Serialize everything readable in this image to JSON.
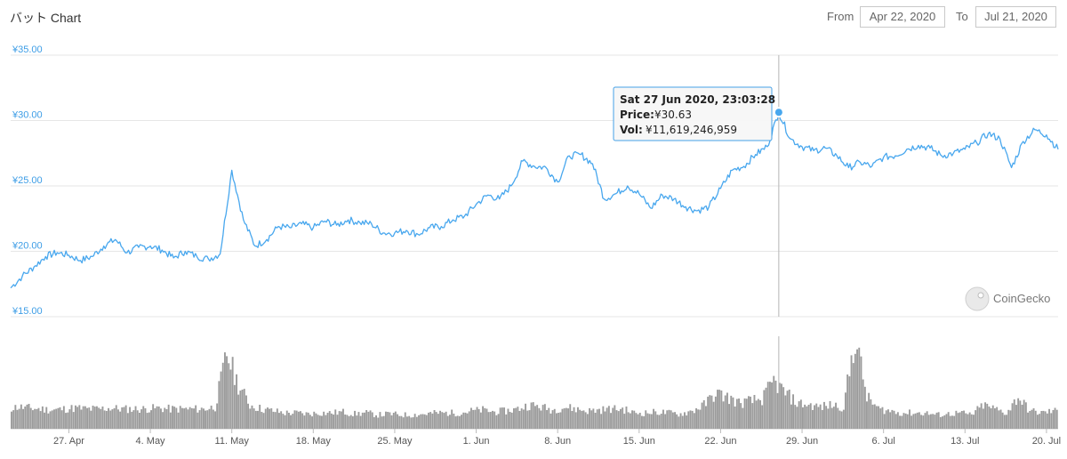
{
  "header": {
    "title": "バット Chart",
    "from_label": "From",
    "from_value": "Apr 22, 2020",
    "to_label": "To",
    "to_value": "Jul 21, 2020"
  },
  "watermark": "CoinGecko",
  "tooltip": {
    "date": "Sat 27 Jun 2020, 23:03:28",
    "price_label": "Price:",
    "price_value": "¥30.63",
    "vol_label": "Vol:",
    "vol_value": "¥11,619,246,959"
  },
  "colors": {
    "line": "#48a7ee",
    "volume": "#9b9b9b",
    "grid": "#e6e6e6",
    "axis_text": "#3d9de6"
  },
  "chart_data": {
    "type": "line",
    "title": "バット Chart",
    "x_range": [
      "2020-04-22",
      "2020-07-21"
    ],
    "ylim": [
      15,
      35
    ],
    "y_ticks": [
      "¥15.00",
      "¥20.00",
      "¥25.00",
      "¥30.00",
      "¥35.00"
    ],
    "y_tick_values": [
      15,
      20,
      25,
      30,
      35
    ],
    "x_ticks": [
      "27. Apr",
      "4. May",
      "11. May",
      "18. May",
      "25. May",
      "1. Jun",
      "8. Jun",
      "15. Jun",
      "22. Jun",
      "29. Jun",
      "6. Jul",
      "13. Jul",
      "20. Jul"
    ],
    "x_tick_dates": [
      "2020-04-27",
      "2020-05-04",
      "2020-05-11",
      "2020-05-18",
      "2020-05-25",
      "2020-06-01",
      "2020-06-08",
      "2020-06-15",
      "2020-06-22",
      "2020-06-29",
      "2020-07-06",
      "2020-07-13",
      "2020-07-20"
    ],
    "grid": true,
    "series": [
      {
        "name": "Price",
        "points": [
          [
            "2020-04-22",
            17.2
          ],
          [
            "2020-04-23",
            18.1
          ],
          [
            "2020-04-24",
            18.8
          ],
          [
            "2020-04-25",
            19.6
          ],
          [
            "2020-04-26",
            19.9
          ],
          [
            "2020-04-27",
            19.7
          ],
          [
            "2020-04-28",
            19.3
          ],
          [
            "2020-04-29",
            19.6
          ],
          [
            "2020-04-30",
            20.4
          ],
          [
            "2020-05-01",
            20.9
          ],
          [
            "2020-05-02",
            19.9
          ],
          [
            "2020-05-03",
            20.3
          ],
          [
            "2020-05-04",
            20.4
          ],
          [
            "2020-05-05",
            20.1
          ],
          [
            "2020-05-06",
            19.5
          ],
          [
            "2020-05-07",
            20.0
          ],
          [
            "2020-05-08",
            19.6
          ],
          [
            "2020-05-09",
            19.4
          ],
          [
            "2020-05-10",
            19.8
          ],
          [
            "2020-05-11",
            26.2
          ],
          [
            "2020-05-12",
            22.4
          ],
          [
            "2020-05-13",
            20.4
          ],
          [
            "2020-05-14",
            20.9
          ],
          [
            "2020-05-15",
            21.9
          ],
          [
            "2020-05-16",
            21.8
          ],
          [
            "2020-05-17",
            22.1
          ],
          [
            "2020-05-18",
            21.8
          ],
          [
            "2020-05-19",
            22.3
          ],
          [
            "2020-05-20",
            22.0
          ],
          [
            "2020-05-21",
            22.4
          ],
          [
            "2020-05-22",
            22.2
          ],
          [
            "2020-05-23",
            22.1
          ],
          [
            "2020-05-24",
            21.4
          ],
          [
            "2020-05-25",
            21.4
          ],
          [
            "2020-05-26",
            21.6
          ],
          [
            "2020-05-27",
            21.3
          ],
          [
            "2020-05-28",
            21.8
          ],
          [
            "2020-05-29",
            21.9
          ],
          [
            "2020-05-30",
            22.4
          ],
          [
            "2020-05-31",
            22.7
          ],
          [
            "2020-06-01",
            23.6
          ],
          [
            "2020-06-02",
            24.3
          ],
          [
            "2020-06-03",
            24.0
          ],
          [
            "2020-06-04",
            25.0
          ],
          [
            "2020-06-05",
            26.9
          ],
          [
            "2020-06-06",
            26.5
          ],
          [
            "2020-06-07",
            26.4
          ],
          [
            "2020-06-08",
            25.3
          ],
          [
            "2020-06-09",
            27.3
          ],
          [
            "2020-06-10",
            27.4
          ],
          [
            "2020-06-11",
            26.7
          ],
          [
            "2020-06-12",
            24.0
          ],
          [
            "2020-06-13",
            24.4
          ],
          [
            "2020-06-14",
            25.0
          ],
          [
            "2020-06-15",
            24.4
          ],
          [
            "2020-06-16",
            23.3
          ],
          [
            "2020-06-17",
            24.3
          ],
          [
            "2020-06-18",
            24.0
          ],
          [
            "2020-06-19",
            23.4
          ],
          [
            "2020-06-20",
            23.1
          ],
          [
            "2020-06-21",
            23.4
          ],
          [
            "2020-06-22",
            24.8
          ],
          [
            "2020-06-23",
            26.2
          ],
          [
            "2020-06-24",
            26.5
          ],
          [
            "2020-06-25",
            27.4
          ],
          [
            "2020-06-26",
            28.0
          ],
          [
            "2020-06-27",
            30.63
          ],
          [
            "2020-06-28",
            28.6
          ],
          [
            "2020-06-29",
            28.0
          ],
          [
            "2020-06-30",
            27.7
          ],
          [
            "2020-07-01",
            27.9
          ],
          [
            "2020-07-02",
            27.3
          ],
          [
            "2020-07-03",
            26.4
          ],
          [
            "2020-07-04",
            26.8
          ],
          [
            "2020-07-05",
            26.5
          ],
          [
            "2020-07-06",
            27.2
          ],
          [
            "2020-07-07",
            27.3
          ],
          [
            "2020-07-08",
            27.8
          ],
          [
            "2020-07-09",
            28.1
          ],
          [
            "2020-07-10",
            27.9
          ],
          [
            "2020-07-11",
            27.3
          ],
          [
            "2020-07-12",
            27.5
          ],
          [
            "2020-07-13",
            27.8
          ],
          [
            "2020-07-14",
            28.3
          ],
          [
            "2020-07-15",
            29.0
          ],
          [
            "2020-07-16",
            28.6
          ],
          [
            "2020-07-17",
            26.4
          ],
          [
            "2020-07-18",
            28.4
          ],
          [
            "2020-07-19",
            29.3
          ],
          [
            "2020-07-20",
            28.9
          ],
          [
            "2020-07-21",
            27.8
          ]
        ]
      },
      {
        "name": "Vol",
        "relative_levels": [
          1.0,
          1.1,
          1.05,
          1.0,
          0.95,
          1.0,
          1.05,
          1.0,
          1.0,
          1.05,
          1.0,
          1.0,
          1.0,
          1.05,
          1.0,
          1.0,
          1.0,
          1.0,
          1.1,
          3.8,
          2.2,
          1.2,
          1.0,
          0.9,
          0.8,
          0.8,
          0.75,
          0.8,
          0.8,
          0.85,
          0.75,
          0.8,
          0.7,
          0.75,
          0.7,
          0.7,
          0.75,
          0.8,
          0.8,
          0.8,
          0.9,
          0.95,
          0.85,
          0.9,
          1.0,
          1.2,
          1.1,
          0.95,
          1.1,
          1.0,
          0.9,
          0.95,
          1.0,
          1.0,
          0.8,
          0.8,
          0.85,
          0.8,
          0.75,
          0.9,
          1.2,
          1.8,
          1.6,
          1.3,
          1.4,
          1.5,
          2.4,
          1.8,
          1.3,
          1.2,
          1.1,
          1.2,
          1.1,
          4.6,
          1.6,
          1.0,
          0.9,
          0.8,
          0.8,
          0.8,
          0.7,
          0.75,
          0.8,
          0.7,
          1.2,
          1.0,
          0.8,
          1.6,
          0.9,
          0.8,
          0.9
        ]
      }
    ]
  }
}
